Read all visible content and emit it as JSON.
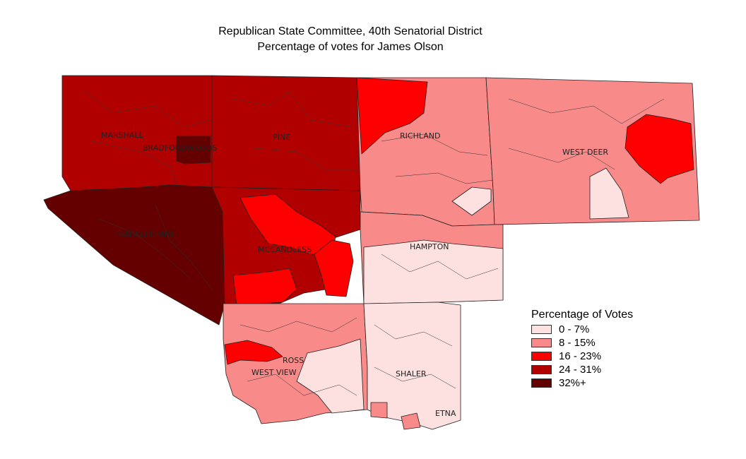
{
  "title_line1": "Republican State Committee, 40th Senatorial District",
  "title_line2": "Percentage of votes for James Olson",
  "legend": {
    "title": "Percentage of Votes",
    "items": [
      {
        "label": "0 - 7%",
        "color": "#fde0e0"
      },
      {
        "label": "8 - 15%",
        "color": "#f98a8a"
      },
      {
        "label": "16 - 23%",
        "color": "#fe0000"
      },
      {
        "label": "24 - 31%",
        "color": "#b10000"
      },
      {
        "label": "32%+",
        "color": "#640000"
      }
    ]
  },
  "labels": {
    "marshall": "MARSHALL",
    "bradfordwoods": "BRADFORDWOODS",
    "pine": "PINE",
    "richland": "RICHLAND",
    "westdeer": "WEST DEER",
    "franklinpark": "FRANKLIN PARK",
    "mccandless": "MCCANDLESS",
    "hampton": "HAMPTON",
    "ross": "ROSS",
    "westview": "WEST VIEW",
    "shaler": "SHALER",
    "etna": "ETNA"
  }
}
